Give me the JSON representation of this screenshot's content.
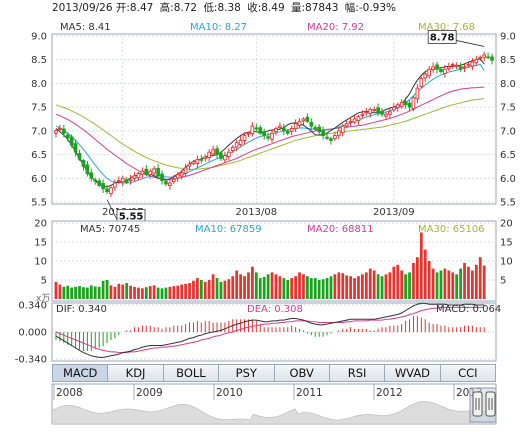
{
  "header": {
    "date": "2013/09/26",
    "open_label": "开:",
    "open": "8.47",
    "high_label": "高:",
    "high": "8.72",
    "low_label": "低:",
    "low": "8.38",
    "close_label": "收:",
    "close": "8.49",
    "volume_label": "量:",
    "volume": "87843",
    "change_label": "幅:",
    "change": "-0.93%"
  },
  "colors": {
    "up": "#e8322e",
    "down": "#1aa31a",
    "ma5": "#333333",
    "ma10": "#2aa6d6",
    "ma20": "#d63c8f",
    "ma30": "#a5b43a",
    "dif": "#333333",
    "dea": "#d63c8f",
    "grid": "#c9d3de",
    "frame": "#9aa7b8"
  },
  "chart_data": [
    {
      "type": "candlestick",
      "panel": "price",
      "ylim": [
        5.5,
        9.0
      ],
      "yticks": [
        "9.0",
        "8.5",
        "8.0",
        "7.5",
        "7.0",
        "6.5",
        "6.0",
        "5.5"
      ],
      "xticks": [
        {
          "i": 17,
          "label": "2013/07"
        },
        {
          "i": 51,
          "label": "2013/08"
        },
        {
          "i": 86,
          "label": "2013/09"
        }
      ],
      "ma_legend": [
        {
          "name": "MA5:",
          "value": "8.41"
        },
        {
          "name": "MA10:",
          "value": "8.27"
        },
        {
          "name": "MA20:",
          "value": "7.92"
        },
        {
          "name": "MA30:",
          "value": "7.68"
        }
      ],
      "annotations": [
        {
          "i": 13,
          "price": 5.55,
          "label": "5.55"
        },
        {
          "i": 109,
          "price": 8.78,
          "label": "8.78"
        }
      ],
      "closes": [
        7.0,
        7.05,
        6.95,
        6.85,
        6.7,
        6.55,
        6.4,
        6.25,
        6.1,
        6.0,
        5.95,
        5.85,
        5.78,
        5.72,
        5.8,
        5.9,
        5.95,
        6.0,
        5.92,
        5.98,
        6.05,
        6.1,
        6.15,
        6.08,
        6.15,
        6.2,
        6.05,
        5.95,
        5.88,
        5.9,
        5.98,
        6.08,
        6.12,
        6.22,
        6.3,
        6.35,
        6.4,
        6.38,
        6.45,
        6.55,
        6.6,
        6.5,
        6.42,
        6.48,
        6.55,
        6.65,
        6.75,
        6.8,
        6.9,
        6.95,
        7.1,
        7.05,
        6.95,
        6.9,
        6.85,
        6.95,
        7.05,
        7.1,
        7.0,
        6.95,
        7.05,
        7.15,
        7.2,
        7.25,
        7.2,
        7.1,
        7.05,
        6.98,
        6.9,
        6.85,
        6.8,
        6.9,
        7.0,
        7.1,
        7.15,
        7.2,
        7.25,
        7.3,
        7.35,
        7.4,
        7.45,
        7.45,
        7.4,
        7.35,
        7.35,
        7.4,
        7.5,
        7.55,
        7.6,
        7.55,
        7.5,
        7.7,
        7.9,
        8.1,
        8.2,
        8.3,
        8.35,
        8.3,
        8.25,
        8.3,
        8.35,
        8.4,
        8.38,
        8.3,
        8.35,
        8.4,
        8.45,
        8.5,
        8.55,
        8.6,
        8.55,
        8.49
      ],
      "ma5": [
        7.05,
        6.98,
        6.91,
        6.82,
        6.7,
        6.56,
        6.42,
        6.28,
        6.14,
        6.02,
        5.95,
        5.87,
        5.82,
        5.82,
        5.85,
        5.9,
        5.92,
        5.93,
        5.95,
        6.01,
        6.05,
        6.07,
        6.1,
        6.12,
        6.1,
        6.05,
        6.01,
        5.99,
        5.96,
        5.98,
        6.04,
        6.08,
        6.15,
        6.23,
        6.3,
        6.36,
        6.38,
        6.41,
        6.45,
        6.47,
        6.48,
        6.5,
        6.55,
        6.62,
        6.7,
        6.77,
        6.84,
        6.9,
        6.95,
        6.97,
        6.99,
        6.98,
        6.96,
        6.97,
        7.0,
        7.02,
        7.02,
        7.03,
        7.07,
        7.13,
        7.16,
        7.17,
        7.15,
        7.12,
        7.06,
        6.99,
        6.92,
        6.91,
        6.92,
        6.95,
        7.01,
        7.06,
        7.12,
        7.18,
        7.23,
        7.28,
        7.33,
        7.38,
        7.4,
        7.41,
        7.4,
        7.38,
        7.38,
        7.41,
        7.45,
        7.48,
        7.51,
        7.52,
        7.57,
        7.67,
        7.78,
        7.94,
        8.07,
        8.17,
        8.25,
        8.29,
        8.31,
        8.32,
        8.33,
        8.35,
        8.36,
        8.36,
        8.37,
        8.38,
        8.41,
        8.45,
        8.48,
        8.5,
        8.52,
        8.41
      ],
      "ma10": [
        7.1,
        7.06,
        7.01,
        6.95,
        6.88,
        6.8,
        6.71,
        6.61,
        6.5,
        6.39,
        6.28,
        6.17,
        6.08,
        6.0,
        5.94,
        5.92,
        5.91,
        5.9,
        5.9,
        5.91,
        5.93,
        5.96,
        5.99,
        6.02,
        6.04,
        6.05,
        6.05,
        6.04,
        6.03,
        6.02,
        6.03,
        6.05,
        6.07,
        6.1,
        6.14,
        6.18,
        6.22,
        6.26,
        6.3,
        6.34,
        6.38,
        6.41,
        6.44,
        6.48,
        6.52,
        6.56,
        6.61,
        6.66,
        6.71,
        6.76,
        6.81,
        6.85,
        6.88,
        6.9,
        6.92,
        6.94,
        6.96,
        6.98,
        7.0,
        7.02,
        7.04,
        7.05,
        7.06,
        7.06,
        7.05,
        7.04,
        7.03,
        7.02,
        7.02,
        7.02,
        7.03,
        7.05,
        7.08,
        7.11,
        7.14,
        7.17,
        7.2,
        7.23,
        7.26,
        7.29,
        7.32,
        7.34,
        7.36,
        7.38,
        7.4,
        7.42,
        7.45,
        7.48,
        7.53,
        7.59,
        7.66,
        7.74,
        7.82,
        7.9,
        7.97,
        8.03,
        8.09,
        8.14,
        8.18,
        8.21,
        8.24,
        8.26,
        8.28,
        8.3,
        8.32,
        8.34,
        8.36,
        8.38,
        8.4,
        8.27
      ],
      "ma20": [
        7.35,
        7.32,
        7.28,
        7.24,
        7.19,
        7.14,
        7.08,
        7.02,
        6.96,
        6.89,
        6.82,
        6.75,
        6.68,
        6.61,
        6.55,
        6.49,
        6.43,
        6.37,
        6.31,
        6.26,
        6.21,
        6.16,
        6.12,
        6.08,
        6.05,
        6.02,
        6.0,
        5.99,
        5.98,
        5.98,
        5.99,
        6.0,
        6.02,
        6.04,
        6.06,
        6.09,
        6.12,
        6.15,
        6.18,
        6.21,
        6.24,
        6.27,
        6.3,
        6.33,
        6.36,
        6.39,
        6.42,
        6.46,
        6.5,
        6.54,
        6.58,
        6.61,
        6.64,
        6.67,
        6.7,
        6.73,
        6.76,
        6.79,
        6.82,
        6.85,
        6.88,
        6.9,
        6.92,
        6.94,
        6.96,
        6.98,
        7.0,
        7.01,
        7.02,
        7.03,
        7.04,
        7.05,
        7.06,
        7.07,
        7.08,
        7.09,
        7.1,
        7.11,
        7.12,
        7.14,
        7.16,
        7.18,
        7.2,
        7.22,
        7.24,
        7.26,
        7.29,
        7.32,
        7.35,
        7.38,
        7.42,
        7.46,
        7.5,
        7.54,
        7.58,
        7.62,
        7.66,
        7.7,
        7.74,
        7.78,
        7.81,
        7.84,
        7.86,
        7.88,
        7.89,
        7.9,
        7.91,
        7.91,
        7.92,
        7.92
      ],
      "ma30": [
        7.55,
        7.52,
        7.49,
        7.46,
        7.42,
        7.38,
        7.34,
        7.29,
        7.24,
        7.19,
        7.14,
        7.08,
        7.02,
        6.96,
        6.9,
        6.84,
        6.78,
        6.72,
        6.67,
        6.62,
        6.57,
        6.52,
        6.48,
        6.44,
        6.4,
        6.37,
        6.34,
        6.31,
        6.28,
        6.26,
        6.24,
        6.22,
        6.21,
        6.2,
        6.19,
        6.19,
        6.19,
        6.2,
        6.21,
        6.22,
        6.23,
        6.25,
        6.27,
        6.29,
        6.31,
        6.33,
        6.35,
        6.38,
        6.41,
        6.44,
        6.47,
        6.5,
        6.53,
        6.56,
        6.59,
        6.62,
        6.65,
        6.68,
        6.71,
        6.74,
        6.77,
        6.8,
        6.82,
        6.84,
        6.86,
        6.88,
        6.9,
        6.92,
        6.93,
        6.94,
        6.95,
        6.96,
        6.97,
        6.98,
        6.99,
        7.0,
        7.01,
        7.02,
        7.03,
        7.04,
        7.05,
        7.06,
        7.07,
        7.08,
        7.1,
        7.12,
        7.14,
        7.16,
        7.18,
        7.2,
        7.23,
        7.26,
        7.29,
        7.32,
        7.35,
        7.38,
        7.41,
        7.44,
        7.47,
        7.5,
        7.53,
        7.55,
        7.57,
        7.59,
        7.61,
        7.63,
        7.65,
        7.66,
        7.67,
        7.68
      ]
    },
    {
      "type": "bar",
      "panel": "volume",
      "ylim": [
        0,
        20
      ],
      "yticks": [
        "20",
        "15",
        "10",
        "5"
      ],
      "ma_legend": [
        {
          "name": "MA5:",
          "value": "70745"
        },
        {
          "name": "MA10:",
          "value": "67859"
        },
        {
          "name": "MA20:",
          "value": "68811"
        },
        {
          "name": "MA30:",
          "value": "65106"
        }
      ],
      "unit_label": "x万",
      "values": [
        4.5,
        3.8,
        3.2,
        3.5,
        3.0,
        3.2,
        3.4,
        3.1,
        3.0,
        3.6,
        3.3,
        3.2,
        4.8,
        5.0,
        3.6,
        3.2,
        4.0,
        3.8,
        4.2,
        3.5,
        3.2,
        3.0,
        2.8,
        3.1,
        3.4,
        3.6,
        3.0,
        2.8,
        3.0,
        3.2,
        3.4,
        3.5,
        3.8,
        4.0,
        4.2,
        4.8,
        5.5,
        5.0,
        4.5,
        5.0,
        6.5,
        5.5,
        4.5,
        4.8,
        5.2,
        6.0,
        7.5,
        6.5,
        6.0,
        7.0,
        8.5,
        7.0,
        5.5,
        5.8,
        6.5,
        7.0,
        6.5,
        6.0,
        5.5,
        5.0,
        5.5,
        6.0,
        7.0,
        6.5,
        6.0,
        5.5,
        5.5,
        5.0,
        5.2,
        5.5,
        6.0,
        6.5,
        7.0,
        6.8,
        6.2,
        6.0,
        5.5,
        6.0,
        6.5,
        7.0,
        8.0,
        7.5,
        6.5,
        6.0,
        6.5,
        7.0,
        8.5,
        9.0,
        7.5,
        6.5,
        7.0,
        9.5,
        11.0,
        17.5,
        13.0,
        10.0,
        8.0,
        7.0,
        7.5,
        8.0,
        7.5,
        7.0,
        6.5,
        8.0,
        9.5,
        8.5,
        7.5,
        9.0,
        11.0,
        8.8
      ]
    },
    {
      "type": "macd",
      "panel": "macd",
      "ylim": [
        -0.34,
        0.34
      ],
      "yticks": [
        "0.340",
        "0.000",
        "-0.340"
      ],
      "legend": [
        {
          "name": "DIF:",
          "value": "0.340"
        },
        {
          "name": "DEA:",
          "value": "0.308"
        },
        {
          "name": "MACD:",
          "value": "0.064"
        }
      ],
      "dif": [
        -0.05,
        -0.08,
        -0.11,
        -0.14,
        -0.17,
        -0.2,
        -0.23,
        -0.26,
        -0.28,
        -0.3,
        -0.31,
        -0.32,
        -0.32,
        -0.31,
        -0.3,
        -0.29,
        -0.28,
        -0.26,
        -0.25,
        -0.24,
        -0.22,
        -0.21,
        -0.19,
        -0.18,
        -0.17,
        -0.17,
        -0.17,
        -0.17,
        -0.16,
        -0.15,
        -0.14,
        -0.13,
        -0.12,
        -0.1,
        -0.08,
        -0.07,
        -0.05,
        -0.04,
        -0.02,
        -0.01,
        0.0,
        0.01,
        0.02,
        0.04,
        0.06,
        0.08,
        0.1,
        0.11,
        0.13,
        0.14,
        0.15,
        0.15,
        0.14,
        0.13,
        0.13,
        0.14,
        0.14,
        0.15,
        0.15,
        0.16,
        0.17,
        0.17,
        0.16,
        0.15,
        0.13,
        0.11,
        0.1,
        0.09,
        0.09,
        0.1,
        0.11,
        0.12,
        0.13,
        0.14,
        0.15,
        0.16,
        0.16,
        0.16,
        0.16,
        0.16,
        0.16,
        0.16,
        0.17,
        0.18,
        0.19,
        0.2,
        0.21,
        0.22,
        0.24,
        0.27,
        0.3,
        0.33,
        0.35,
        0.36,
        0.36,
        0.35,
        0.35,
        0.35,
        0.35,
        0.35,
        0.34,
        0.34,
        0.34,
        0.34,
        0.35,
        0.35,
        0.35,
        0.34,
        0.34,
        0.34
      ],
      "dea": [
        0.0,
        -0.02,
        -0.04,
        -0.06,
        -0.08,
        -0.1,
        -0.12,
        -0.14,
        -0.16,
        -0.18,
        -0.2,
        -0.22,
        -0.23,
        -0.24,
        -0.25,
        -0.25,
        -0.26,
        -0.26,
        -0.26,
        -0.25,
        -0.25,
        -0.24,
        -0.23,
        -0.22,
        -0.21,
        -0.2,
        -0.2,
        -0.19,
        -0.19,
        -0.18,
        -0.18,
        -0.17,
        -0.16,
        -0.15,
        -0.14,
        -0.13,
        -0.12,
        -0.1,
        -0.09,
        -0.08,
        -0.06,
        -0.05,
        -0.04,
        -0.02,
        -0.01,
        0.0,
        0.02,
        0.03,
        0.05,
        0.06,
        0.07,
        0.08,
        0.09,
        0.1,
        0.1,
        0.11,
        0.11,
        0.12,
        0.12,
        0.13,
        0.13,
        0.14,
        0.14,
        0.14,
        0.14,
        0.13,
        0.13,
        0.12,
        0.12,
        0.12,
        0.12,
        0.12,
        0.12,
        0.12,
        0.13,
        0.13,
        0.14,
        0.14,
        0.14,
        0.14,
        0.15,
        0.15,
        0.15,
        0.15,
        0.16,
        0.16,
        0.17,
        0.18,
        0.19,
        0.2,
        0.22,
        0.23,
        0.25,
        0.27,
        0.28,
        0.29,
        0.3,
        0.3,
        0.31,
        0.31,
        0.31,
        0.31,
        0.31,
        0.31,
        0.31,
        0.31,
        0.31,
        0.31,
        0.31,
        0.31
      ]
    }
  ],
  "tabs": [
    "MACD",
    "KDJ",
    "BOLL",
    "PSY",
    "OBV",
    "RSI",
    "WVAD",
    "CCI"
  ],
  "active_tab": "MACD",
  "timeline": {
    "years": [
      "2008",
      "2009",
      "2010",
      "2011",
      "2012",
      "2013"
    ]
  }
}
